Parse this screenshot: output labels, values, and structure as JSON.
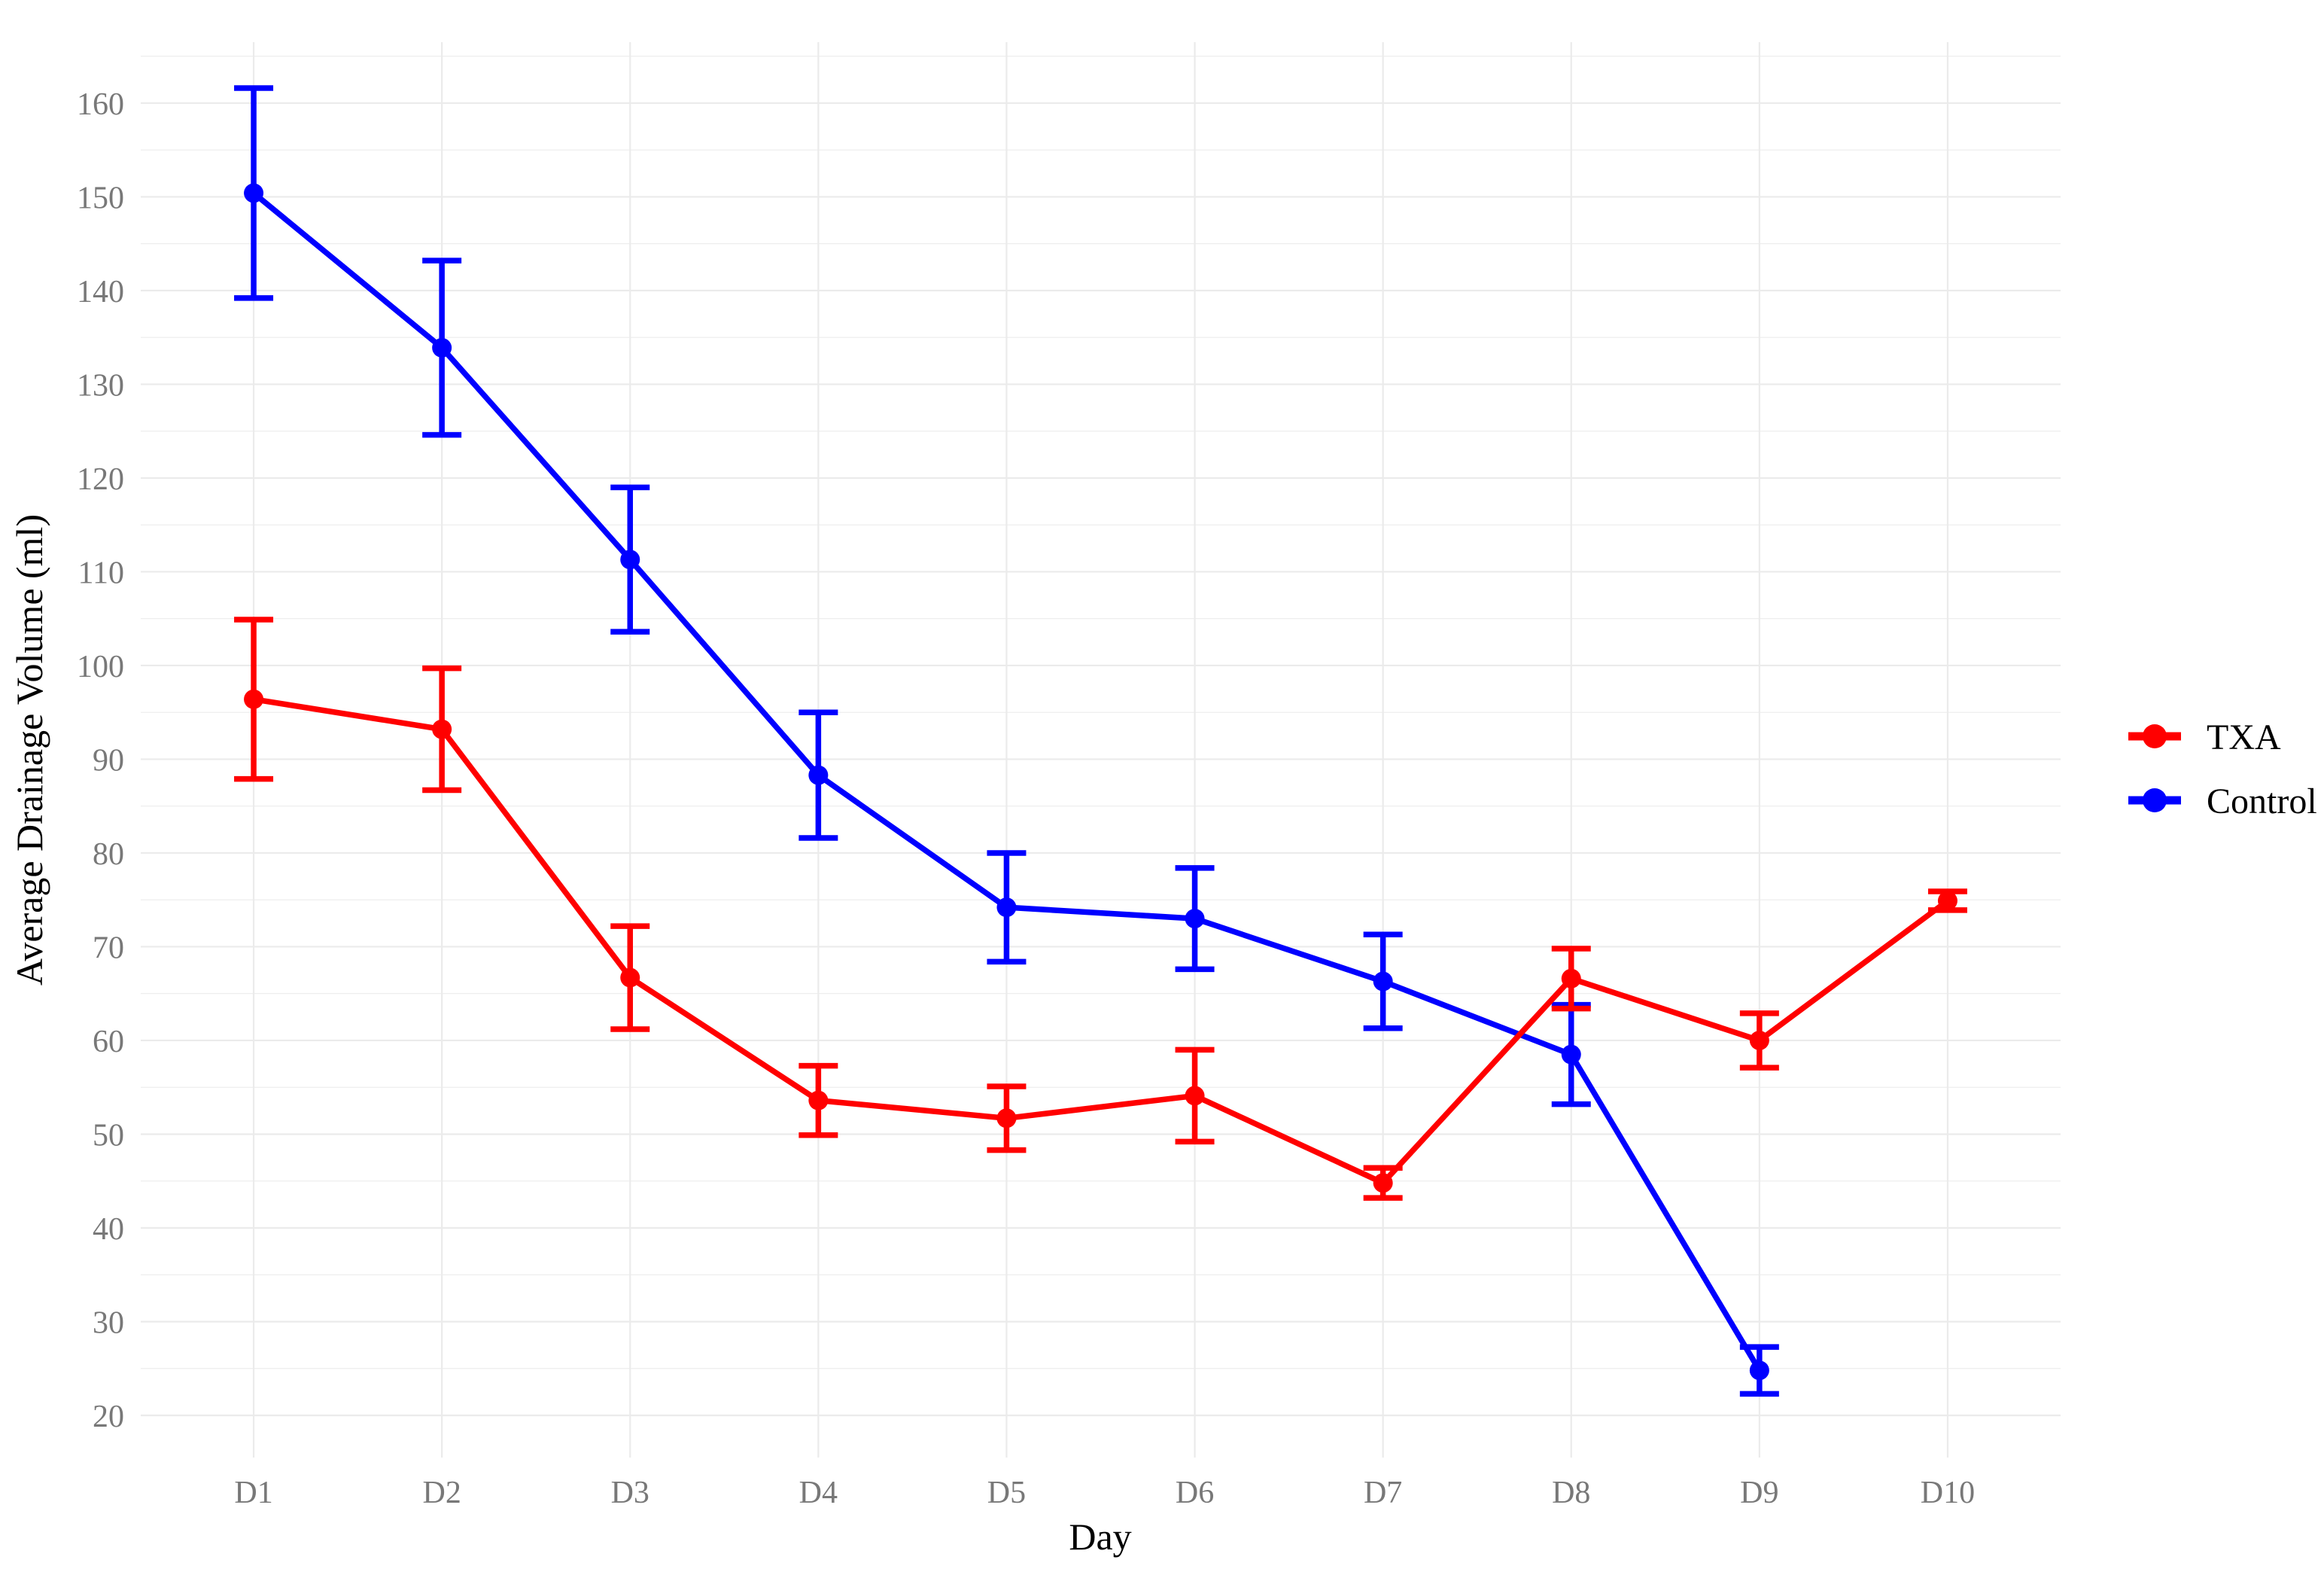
{
  "chart_data": {
    "type": "line",
    "title": "",
    "xlabel": "Day",
    "ylabel": "Average Drainage Volume (ml)",
    "categories": [
      "D1",
      "D2",
      "D3",
      "D4",
      "D5",
      "D6",
      "D7",
      "D8",
      "D9",
      "D10"
    ],
    "series": [
      {
        "name": "TXA",
        "color": "#ff0000",
        "values": [
          96.4,
          93.2,
          66.7,
          53.6,
          51.7,
          54.1,
          44.8,
          66.6,
          60.0,
          74.9
        ],
        "errors": [
          8.5,
          6.5,
          5.5,
          3.7,
          3.4,
          4.9,
          1.6,
          3.2,
          2.9,
          1.0
        ]
      },
      {
        "name": "Control",
        "color": "#0000ff",
        "values": [
          150.4,
          133.9,
          111.3,
          88.3,
          74.2,
          73.0,
          66.3,
          58.5,
          24.8,
          null
        ],
        "errors": [
          11.2,
          9.3,
          7.7,
          6.7,
          5.8,
          5.4,
          5.0,
          5.3,
          2.5,
          null
        ]
      }
    ],
    "y_ticks": [
      20,
      30,
      40,
      50,
      60,
      70,
      80,
      90,
      100,
      110,
      120,
      130,
      140,
      150,
      160
    ],
    "y_minor_ticks": [
      25,
      35,
      45,
      55,
      65,
      75,
      85,
      95,
      105,
      115,
      125,
      135,
      145,
      155,
      165
    ],
    "ylim": [
      15.5,
      166.5
    ],
    "x_axis_type": "categorical",
    "grid": "horizontal major+minor, vertical at each day",
    "legend_position": "right",
    "error_bars": true,
    "marker": "circle"
  },
  "style": {
    "background": "#ffffff",
    "grid_color": "#ebebeb",
    "tick_label_color": "#787878",
    "axis_title_color": "#000000",
    "legend_text_color": "#000000"
  }
}
